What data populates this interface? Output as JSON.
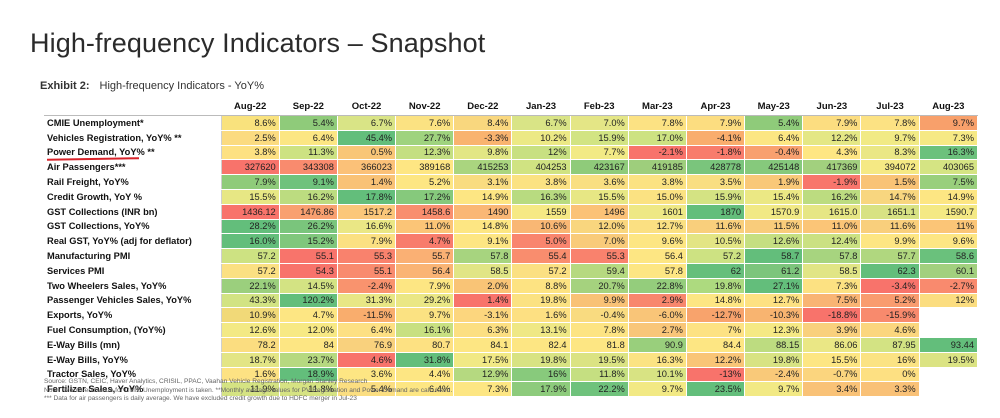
{
  "title": "High-frequency Indicators – Snapshot",
  "exhibit": {
    "label": "Exhibit 2:",
    "text": "High-frequency Indicators - YoY%"
  },
  "table": {
    "columns": [
      "Aug-22",
      "Sep-22",
      "Oct-22",
      "Nov-22",
      "Dec-22",
      "Jan-23",
      "Feb-23",
      "Mar-23",
      "Apr-23",
      "May-23",
      "Jun-23",
      "Jul-23",
      "Aug-23"
    ],
    "rows": [
      {
        "label": "CMIE Unemployment*",
        "values": [
          "8.6%",
          "5.4%",
          "6.7%",
          "7.6%",
          "8.4%",
          "6.7%",
          "7.0%",
          "7.8%",
          "7.9%",
          "5.4%",
          "7.9%",
          "7.8%",
          "9.7%"
        ],
        "colors": [
          "#f9e27d",
          "#8fcb7a",
          "#d9e486",
          "#fbe282",
          "#f9d77e",
          "#d9e486",
          "#e4e686",
          "#fce283",
          "#fcdd80",
          "#8fcb7a",
          "#fcdd80",
          "#fce283",
          "#f8a06b"
        ]
      },
      {
        "label": "Vehicles Registration, YoY% **",
        "values": [
          "2.5%",
          "6.4%",
          "45.4%",
          "27.7%",
          "-3.3%",
          "10.2%",
          "15.9%",
          "17.0%",
          "-4.1%",
          "6.4%",
          "12.2%",
          "9.7%",
          "7.3%"
        ],
        "colors": [
          "#fbdb80",
          "#fce683",
          "#63be7b",
          "#9fd37e",
          "#f9b36f",
          "#ece985",
          "#d2e483",
          "#cde282",
          "#f9ad6d",
          "#fce683",
          "#e4e785",
          "#f1ea85",
          "#f6e984"
        ]
      },
      {
        "label": "Power Demand, YoY% **",
        "values": [
          "3.8%",
          "11.3%",
          "0.5%",
          "12.3%",
          "9.8%",
          "12%",
          "7.7%",
          "-2.1%",
          "-1.8%",
          "-0.4%",
          "4.3%",
          "8.3%",
          "16.3%"
        ],
        "colors": [
          "#fde182",
          "#cde282",
          "#f9c677",
          "#c4df81",
          "#e2e684",
          "#c8e081",
          "#f2ea85",
          "#f8736b",
          "#f87c6c",
          "#f8a06f",
          "#fee683",
          "#eae785",
          "#6cc17c"
        ]
      },
      {
        "label": "Air Passengers***",
        "values": [
          "327620",
          "343308",
          "366023",
          "389168",
          "415253",
          "404253",
          "423167",
          "419185",
          "428778",
          "425148",
          "417369",
          "394072",
          "403065"
        ],
        "colors": [
          "#f8736b",
          "#f98b6e",
          "#fbc178",
          "#fee683",
          "#aad57f",
          "#d0e382",
          "#8fcb7a",
          "#9ece7c",
          "#7ac57c",
          "#86c97c",
          "#a2d07e",
          "#f5e984",
          "#d5e483"
        ]
      },
      {
        "label": "Rail Freight, YoY%",
        "values": [
          "7.9%",
          "9.1%",
          "1.4%",
          "5.2%",
          "3.1%",
          "3.8%",
          "3.6%",
          "3.8%",
          "3.5%",
          "1.9%",
          "-1.9%",
          "1.5%",
          "7.5%"
        ],
        "colors": [
          "#8fcb7a",
          "#6fc27c",
          "#f9c276",
          "#fde683",
          "#f9dc80",
          "#fbe282",
          "#f9df81",
          "#fbe282",
          "#f9de81",
          "#f9c878",
          "#f8766c",
          "#f9c376",
          "#99cf7c"
        ]
      },
      {
        "label": "Credit Growth, YoY %",
        "values": [
          "15.5%",
          "16.2%",
          "17.8%",
          "17.2%",
          "14.9%",
          "16.3%",
          "15.5%",
          "15.0%",
          "15.9%",
          "15.4%",
          "16.2%",
          "14.7%",
          "14.9%"
        ],
        "colors": [
          "#e7e784",
          "#bcdc80",
          "#63be7b",
          "#86c97c",
          "#fde683",
          "#b8db80",
          "#e7e784",
          "#fbe282",
          "#d4e383",
          "#ebe884",
          "#bcdc80",
          "#f8d67f",
          "#fde683"
        ]
      },
      {
        "label": "GST Collections (INR bn)",
        "values": [
          "1436.12",
          "1476.86",
          "1517.2",
          "1458.6",
          "1490",
          "1559",
          "1496",
          "1601",
          "1870",
          "1570.9",
          "1615.0",
          "1651.1",
          "1590.7"
        ],
        "colors": [
          "#f8736b",
          "#f9a070",
          "#fbc77a",
          "#f98e6e",
          "#fab775",
          "#f6e984",
          "#fbc277",
          "#eee885",
          "#63be7b",
          "#f1e985",
          "#e6e684",
          "#d8e283",
          "#f4e984"
        ]
      },
      {
        "label": "GST Collections, YoY%",
        "values": [
          "28.2%",
          "26.2%",
          "16.6%",
          "11.0%",
          "14.8%",
          "10.6%",
          "12.0%",
          "12.7%",
          "11.6%",
          "11.5%",
          "11.0%",
          "11.6%",
          "11%"
        ],
        "colors": [
          "#63be7b",
          "#7ac57c",
          "#eae785",
          "#fbc577",
          "#fde683",
          "#f9b774",
          "#f9d67e",
          "#fbe082",
          "#f9cf7c",
          "#f9cc7b",
          "#fbc577",
          "#f9cf7c",
          "#fbc577"
        ]
      },
      {
        "label": "Real GST, YoY% (adj for deflator)",
        "values": [
          "16.0%",
          "15.2%",
          "7.9%",
          "4.7%",
          "9.1%",
          "5.0%",
          "7.0%",
          "9.6%",
          "10.5%",
          "12.6%",
          "12.4%",
          "9.9%",
          "9.6%"
        ],
        "colors": [
          "#63be7b",
          "#80c77c",
          "#fbe082",
          "#f87c6c",
          "#fde683",
          "#f9856e",
          "#f9cb7a",
          "#fde683",
          "#e3e584",
          "#c5df81",
          "#cbe182",
          "#fde683",
          "#fde683"
        ]
      },
      {
        "label": "Manufacturing PMI",
        "values": [
          "57.2",
          "55.1",
          "55.3",
          "55.7",
          "57.8",
          "55.4",
          "55.3",
          "56.4",
          "57.2",
          "58.7",
          "57.8",
          "57.7",
          "58.6"
        ],
        "colors": [
          "#cde282",
          "#f8746b",
          "#f9826d",
          "#fab074",
          "#a7d47f",
          "#f98d6e",
          "#f9826d",
          "#fde683",
          "#cde282",
          "#63be7b",
          "#a7d47f",
          "#b0d77f",
          "#6ac17c"
        ]
      },
      {
        "label": "Services PMI",
        "values": [
          "57.2",
          "54.3",
          "55.1",
          "56.4",
          "58.5",
          "57.2",
          "59.4",
          "57.8",
          "62",
          "61.2",
          "58.5",
          "62.3",
          "60.1"
        ],
        "colors": [
          "#fbe082",
          "#f8736b",
          "#f98b6e",
          "#fab474",
          "#e1e585",
          "#fbe082",
          "#b6d980",
          "#fde683",
          "#66bf7b",
          "#7cc57c",
          "#e1e585",
          "#63be7b",
          "#a2d07e"
        ]
      },
      {
        "label": "Two Wheelers Sales, YoY%",
        "values": [
          "22.1%",
          "14.5%",
          "-2.4%",
          "7.9%",
          "2.0%",
          "8.8%",
          "20.7%",
          "22.8%",
          "19.8%",
          "27.1%",
          "7.3%",
          "-3.4%",
          "-2.7%"
        ],
        "colors": [
          "#9bcf7d",
          "#d3e383",
          "#f9936e",
          "#fde683",
          "#f9c476",
          "#fde382",
          "#a5d27e",
          "#94cd7c",
          "#adda7f",
          "#63be7b",
          "#fce182",
          "#f8736b",
          "#f98a6e"
        ]
      },
      {
        "label": "Passenger Vehicles Sales, YoY%",
        "values": [
          "43.3%",
          "120.2%",
          "31.3%",
          "29.2%",
          "1.4%",
          "19.8%",
          "9.9%",
          "2.9%",
          "14.8%",
          "12.7%",
          "7.5%",
          "5.2%",
          "12%"
        ],
        "colors": [
          "#d2e383",
          "#63be7b",
          "#e8e785",
          "#eae785",
          "#f8736b",
          "#fbe282",
          "#f9c276",
          "#f8876d",
          "#fde683",
          "#fde182",
          "#f9b474",
          "#f99c6f",
          "#fbdd80"
        ]
      },
      {
        "label": "Exports, YoY%",
        "values": [
          "10.9%",
          "4.7%",
          "-11.5%",
          "9.7%",
          "-3.1%",
          "1.6%",
          "-0.4%",
          "-6.0%",
          "-12.7%",
          "-10.3%",
          "-18.8%",
          "-15.9%",
          ""
        ],
        "colors": [
          "#f1d978",
          "#fde683",
          "#f9ad6d",
          "#fbe282",
          "#fcd67e",
          "#fde082",
          "#f9db80",
          "#f9c578",
          "#f8a36c",
          "#f8b470",
          "#f8736b",
          "#f88a6d",
          "#ffffff"
        ]
      },
      {
        "label": "Fuel Consumption, (YoY%)",
        "values": [
          "12.6%",
          "12.0%",
          "6.4%",
          "16.1%",
          "6.3%",
          "13.1%",
          "7.8%",
          "2.7%",
          "7%",
          "12.3%",
          "3.9%",
          "4.6%",
          ""
        ],
        "colors": [
          "#f3e984",
          "#f7e984",
          "#fde083",
          "#c8e081",
          "#fcdf82",
          "#efe885",
          "#fde483",
          "#f9c679",
          "#fde283",
          "#f5e984",
          "#f9d07d",
          "#fbd67e",
          "#ffffff"
        ]
      },
      {
        "label": "E-Way Bills (mn)",
        "values": [
          "78.2",
          "84",
          "76.9",
          "80.7",
          "84.1",
          "82.4",
          "81.8",
          "90.9",
          "84.4",
          "88.15",
          "86.06",
          "87.95",
          "93.44"
        ],
        "colors": [
          "#fbdd80",
          "#fde683",
          "#f9d17d",
          "#fde182",
          "#fde683",
          "#fde683",
          "#fde683",
          "#99cf7c",
          "#fde683",
          "#bddc80",
          "#eae785",
          "#d3e383",
          "#63be7b"
        ]
      },
      {
        "label": "E-Way Bills, YoY%",
        "values": [
          "18.7%",
          "23.7%",
          "4.6%",
          "31.8%",
          "17.5%",
          "19.8%",
          "19.5%",
          "16.3%",
          "12.2%",
          "19.8%",
          "15.5%",
          "16%",
          "19.5%"
        ],
        "colors": [
          "#e3e585",
          "#b6d980",
          "#f8736b",
          "#63be7b",
          "#f1e985",
          "#d8e383",
          "#dbe383",
          "#fbe383",
          "#f9c577",
          "#d8e383",
          "#fde683",
          "#fbe383",
          "#dbe383"
        ]
      },
      {
        "label": "Tractor Sales, YoY%",
        "values": [
          "1.6%",
          "18.9%",
          "3.6%",
          "4.4%",
          "12.9%",
          "16%",
          "11.8%",
          "10.1%",
          "-13%",
          "-2.4%",
          "-0.7%",
          "0%",
          ""
        ],
        "colors": [
          "#fde283",
          "#63be7b",
          "#fde683",
          "#fde683",
          "#b5d980",
          "#88ca7c",
          "#c5df81",
          "#d8e383",
          "#f8736b",
          "#f9c979",
          "#fbd57e",
          "#fde082",
          "#ffffff"
        ]
      },
      {
        "label": "Fertilizer Sales, YoY%",
        "values": [
          "11.9%",
          "11.8%",
          "5.4%",
          "6.4%",
          "7.3%",
          "17.9%",
          "22.2%",
          "9.7%",
          "23.5%",
          "9.7%",
          "3.4%",
          "3.3%",
          ""
        ],
        "colors": [
          "#d5e383",
          "#d6e383",
          "#fbde81",
          "#fde683",
          "#fde683",
          "#8dcb7c",
          "#6fc27c",
          "#f2e984",
          "#63be7b",
          "#f2e984",
          "#f9c277",
          "#f9c177",
          "#ffffff"
        ]
      }
    ]
  },
  "notes": [
    "Source: GSTN, CEIC, Haver Analytics, CRISIL, PPAC, Vaahan Vehicle Registration, Morgan Stanley Research",
    "Note: *Month-end value for CMIE Unemployment is taken. **Monthly average values for PV Registration and Power Demand are calculated.",
    "*** Data for air passengers is daily average. We have excluded credit growth due to HDFC merger in Jul-23"
  ]
}
